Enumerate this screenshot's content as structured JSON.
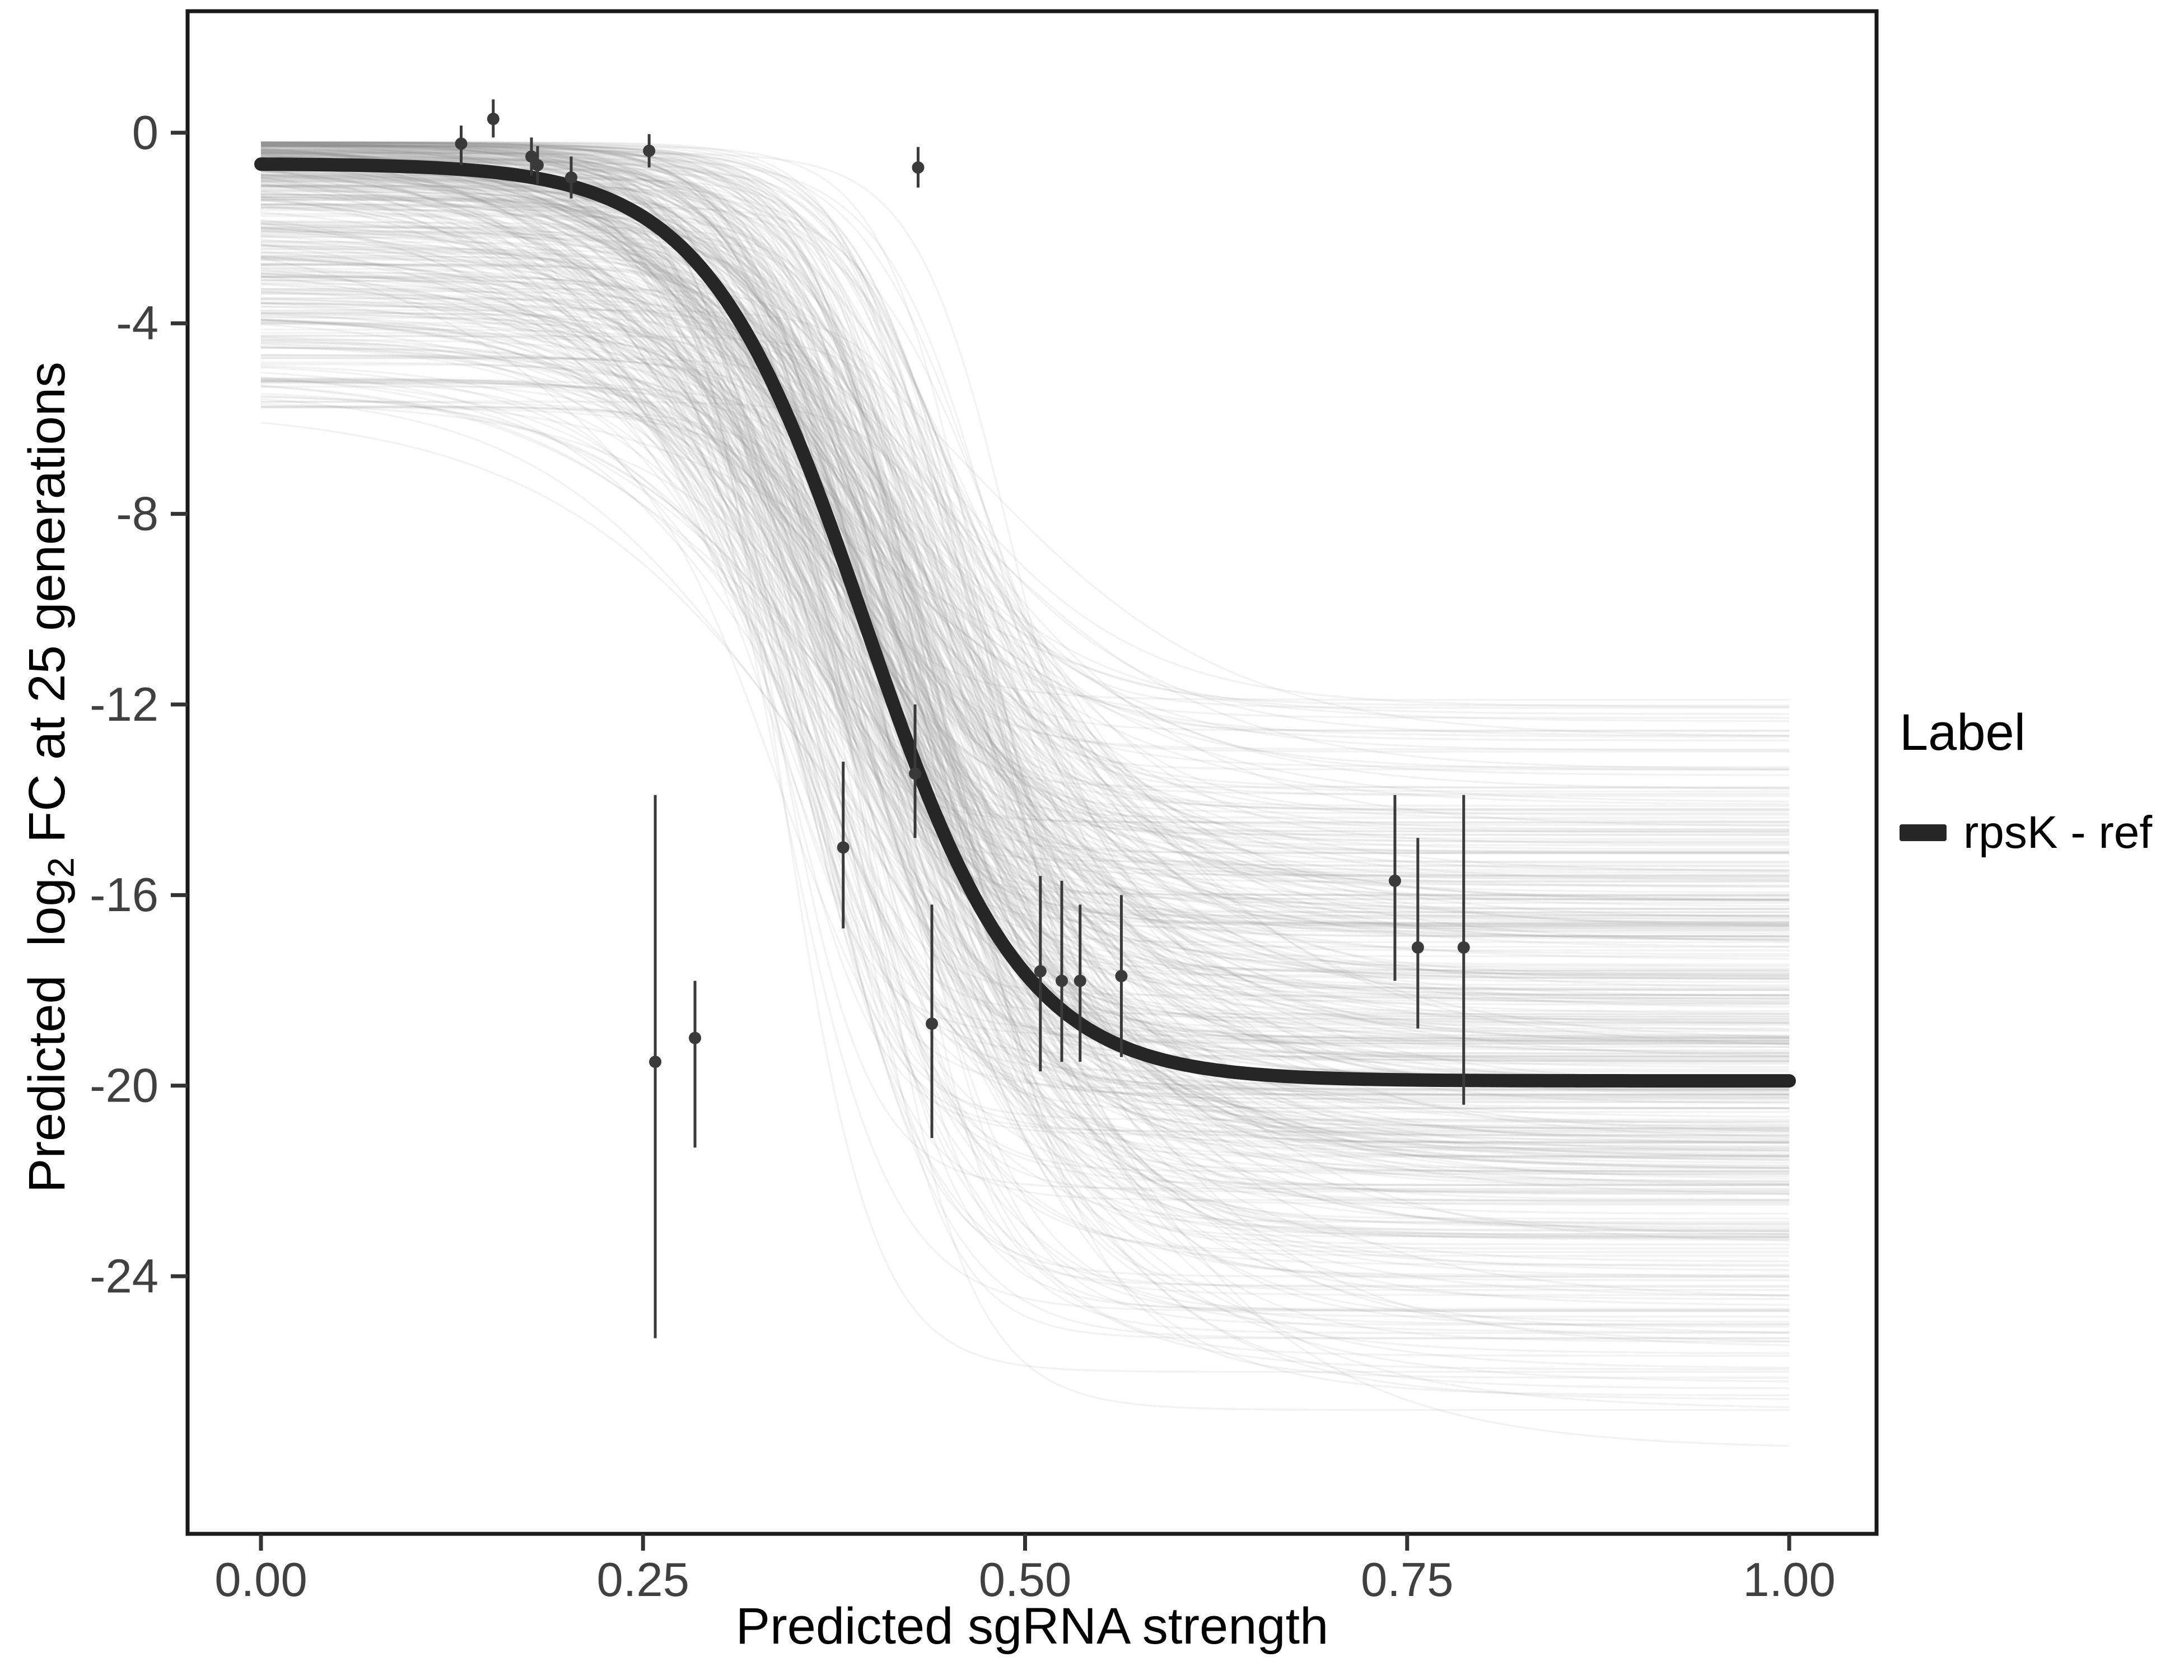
{
  "chart_data": {
    "type": "line",
    "title": "",
    "xlabel": "Predicted sgRNA strength",
    "ylabel": "Predicted log2 FC at 25 generations",
    "ylabel_parts": {
      "pre": "Predicted  log",
      "sub": "2",
      "post": " FC at 25 generations"
    },
    "xlim": [
      -0.048,
      1.057
    ],
    "ylim": [
      -29.4,
      2.55
    ],
    "grid": false,
    "x_ticks": {
      "values": [
        0,
        0.25,
        0.5,
        0.75,
        1
      ],
      "labels": [
        "0.00",
        "0.25",
        "0.50",
        "0.75",
        "1.00"
      ]
    },
    "y_ticks": {
      "values": [
        0,
        -4,
        -8,
        -12,
        -16,
        -20,
        -24
      ],
      "labels": [
        "0",
        "-4",
        "-8",
        "-12",
        "-16",
        "-20",
        "-24"
      ]
    },
    "legend": {
      "title": "Label",
      "position": "right",
      "entries": [
        {
          "label": "rpsK - ref",
          "color": "#262626"
        }
      ]
    },
    "main_curve": {
      "name": "rpsK - ref",
      "model": "logistic",
      "top": -0.65,
      "bottom": -19.9,
      "midpoint": 0.395,
      "slope": 0.052,
      "color": "#262626",
      "stroke_width": 24
    },
    "ensemble": {
      "description": "posterior sample sigmoid curves (gray band)",
      "count": 430,
      "seed": 12,
      "top_range": [
        -5.8,
        -0.2
      ],
      "bottom_range": [
        -28,
        -11
      ],
      "midpoint_range": [
        0.31,
        0.5
      ],
      "slope_range": [
        0.03,
        0.1
      ],
      "color": "#8f8f8f",
      "opacity": 0.11,
      "stroke_width": 3.5
    },
    "points": [
      {
        "x": 0.131,
        "y": -0.23,
        "ymin": -0.68,
        "ymax": 0.15
      },
      {
        "x": 0.152,
        "y": 0.29,
        "ymin": -0.1,
        "ymax": 0.7
      },
      {
        "x": 0.177,
        "y": -0.5,
        "ymin": -0.9,
        "ymax": -0.1
      },
      {
        "x": 0.181,
        "y": -0.68,
        "ymin": -1.08,
        "ymax": -0.28
      },
      {
        "x": 0.203,
        "y": -0.94,
        "ymin": -1.38,
        "ymax": -0.5
      },
      {
        "x": 0.254,
        "y": -0.38,
        "ymin": -0.73,
        "ymax": -0.03
      },
      {
        "x": 0.43,
        "y": -0.73,
        "ymin": -1.15,
        "ymax": -0.3
      },
      {
        "x": 0.258,
        "y": -19.5,
        "ymin": -25.3,
        "ymax": -13.9
      },
      {
        "x": 0.284,
        "y": -19.0,
        "ymin": -21.3,
        "ymax": -17.8
      },
      {
        "x": 0.381,
        "y": -15.0,
        "ymin": -16.7,
        "ymax": -13.2
      },
      {
        "x": 0.428,
        "y": -13.45,
        "ymin": -14.8,
        "ymax": -12.0
      },
      {
        "x": 0.439,
        "y": -18.7,
        "ymin": -21.1,
        "ymax": -16.2
      },
      {
        "x": 0.51,
        "y": -17.6,
        "ymin": -19.7,
        "ymax": -15.6
      },
      {
        "x": 0.524,
        "y": -17.8,
        "ymin": -19.5,
        "ymax": -15.7
      },
      {
        "x": 0.536,
        "y": -17.8,
        "ymin": -19.5,
        "ymax": -16.2
      },
      {
        "x": 0.563,
        "y": -17.7,
        "ymin": -19.4,
        "ymax": -16.0
      },
      {
        "x": 0.742,
        "y": -15.7,
        "ymin": -17.8,
        "ymax": -13.9
      },
      {
        "x": 0.757,
        "y": -17.1,
        "ymin": -18.8,
        "ymax": -14.8
      },
      {
        "x": 0.787,
        "y": -17.1,
        "ymin": -20.4,
        "ymax": -13.9
      }
    ],
    "style": {
      "panel_border_color": "#1a1a1a",
      "tick_color": "#333333",
      "tick_label_color": "#404040",
      "point_color": "#3a3a3a",
      "background": "#ffffff"
    }
  }
}
